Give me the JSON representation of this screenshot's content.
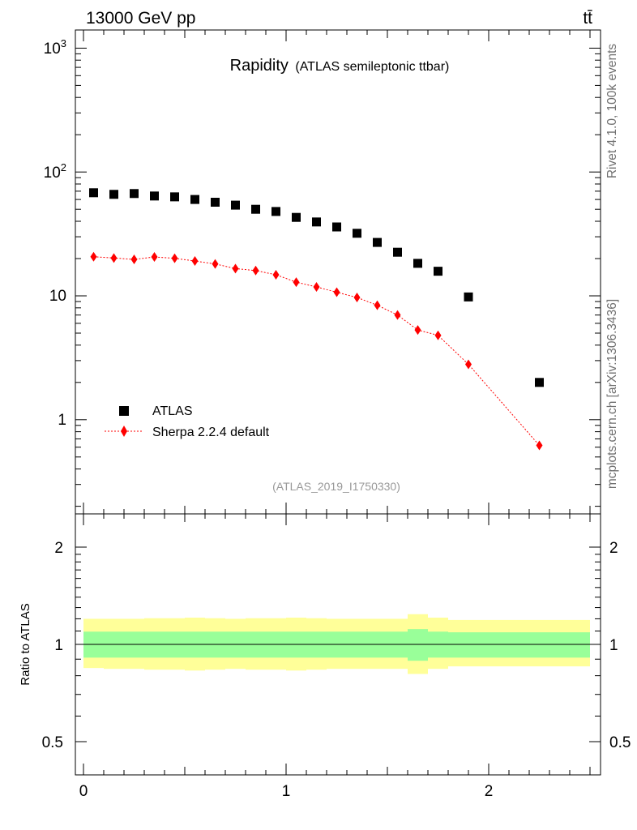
{
  "header": {
    "left": "13000 GeV pp",
    "right": "tt̄"
  },
  "side_labels": {
    "rivet": "Rivet 4.1.0,  100k events",
    "mcplots": "mcplots.cern.ch [arXiv:1306.3436]"
  },
  "chart_data": {
    "type": "scatter",
    "title": "Rapidity",
    "subtitle": "(ATLAS semileptonic ttbar)",
    "analysis_id": "(ATLAS_2019_I1750330)",
    "yscale": "log",
    "ylim": [
      0.25,
      1300
    ],
    "xlim": [
      -0.04,
      2.56
    ],
    "y_ticks": [
      "1",
      "10",
      "10^2",
      "10^3"
    ],
    "x_ticks": [
      "0",
      "1",
      "2"
    ],
    "legend": {
      "position": "bottom-left",
      "entries": [
        "ATLAS",
        "Sherpa 2.2.4 default"
      ]
    },
    "bins": [
      [
        0.0,
        0.1
      ],
      [
        0.1,
        0.2
      ],
      [
        0.2,
        0.3
      ],
      [
        0.3,
        0.4
      ],
      [
        0.4,
        0.5
      ],
      [
        0.5,
        0.6
      ],
      [
        0.6,
        0.7
      ],
      [
        0.7,
        0.8
      ],
      [
        0.8,
        0.9
      ],
      [
        0.9,
        1.0
      ],
      [
        1.0,
        1.1
      ],
      [
        1.1,
        1.2
      ],
      [
        1.2,
        1.3
      ],
      [
        1.3,
        1.4
      ],
      [
        1.4,
        1.5
      ],
      [
        1.5,
        1.6
      ],
      [
        1.6,
        1.7
      ],
      [
        1.7,
        1.8
      ],
      [
        1.8,
        2.0
      ],
      [
        2.0,
        2.5
      ]
    ],
    "x": [
      0.05,
      0.15,
      0.25,
      0.35,
      0.45,
      0.55,
      0.65,
      0.75,
      0.85,
      0.95,
      1.05,
      1.15,
      1.25,
      1.35,
      1.45,
      1.55,
      1.65,
      1.75,
      1.9,
      2.25
    ],
    "series": [
      {
        "name": "ATLAS",
        "color": "#000000",
        "marker": "square",
        "values": [
          68,
          66,
          67,
          64,
          63,
          60,
          57,
          54,
          50,
          48,
          43,
          39.5,
          36,
          32,
          27,
          22.5,
          18.3,
          15.8,
          9.8,
          2.0
        ]
      },
      {
        "name": "Sherpa 2.2.4 default",
        "color": "#ff0000",
        "marker": "diamond",
        "line": "dotted",
        "values": [
          20.7,
          20.2,
          19.7,
          20.6,
          20.1,
          19.1,
          18.1,
          16.6,
          16.0,
          14.8,
          12.9,
          11.8,
          10.7,
          9.7,
          8.4,
          7.0,
          5.3,
          4.8,
          2.8,
          0.62
        ]
      }
    ],
    "ratio_panel": {
      "ylabel": "Ratio to ATLAS",
      "ylim": [
        0.42,
        2.45
      ],
      "y_ticks": [
        "0.5",
        "1",
        "2"
      ],
      "reference": 1.0,
      "inner_band": {
        "color": "#99ff99",
        "lo": [
          0.91,
          0.91,
          0.91,
          0.91,
          0.91,
          0.91,
          0.91,
          0.91,
          0.91,
          0.91,
          0.91,
          0.91,
          0.91,
          0.91,
          0.91,
          0.91,
          0.89,
          0.91,
          0.91,
          0.91
        ],
        "hi": [
          1.095,
          1.095,
          1.095,
          1.095,
          1.095,
          1.095,
          1.095,
          1.095,
          1.095,
          1.095,
          1.095,
          1.095,
          1.095,
          1.095,
          1.095,
          1.095,
          1.115,
          1.095,
          1.09,
          1.09
        ]
      },
      "outer_band": {
        "color": "#ffff99",
        "lo": [
          0.845,
          0.84,
          0.84,
          0.835,
          0.835,
          0.83,
          0.835,
          0.84,
          0.835,
          0.835,
          0.83,
          0.835,
          0.84,
          0.84,
          0.84,
          0.84,
          0.81,
          0.84,
          0.855,
          0.855
        ],
        "hi": [
          1.2,
          1.2,
          1.2,
          1.205,
          1.205,
          1.21,
          1.205,
          1.2,
          1.205,
          1.205,
          1.21,
          1.205,
          1.2,
          1.2,
          1.2,
          1.2,
          1.24,
          1.21,
          1.19,
          1.19
        ]
      }
    }
  }
}
